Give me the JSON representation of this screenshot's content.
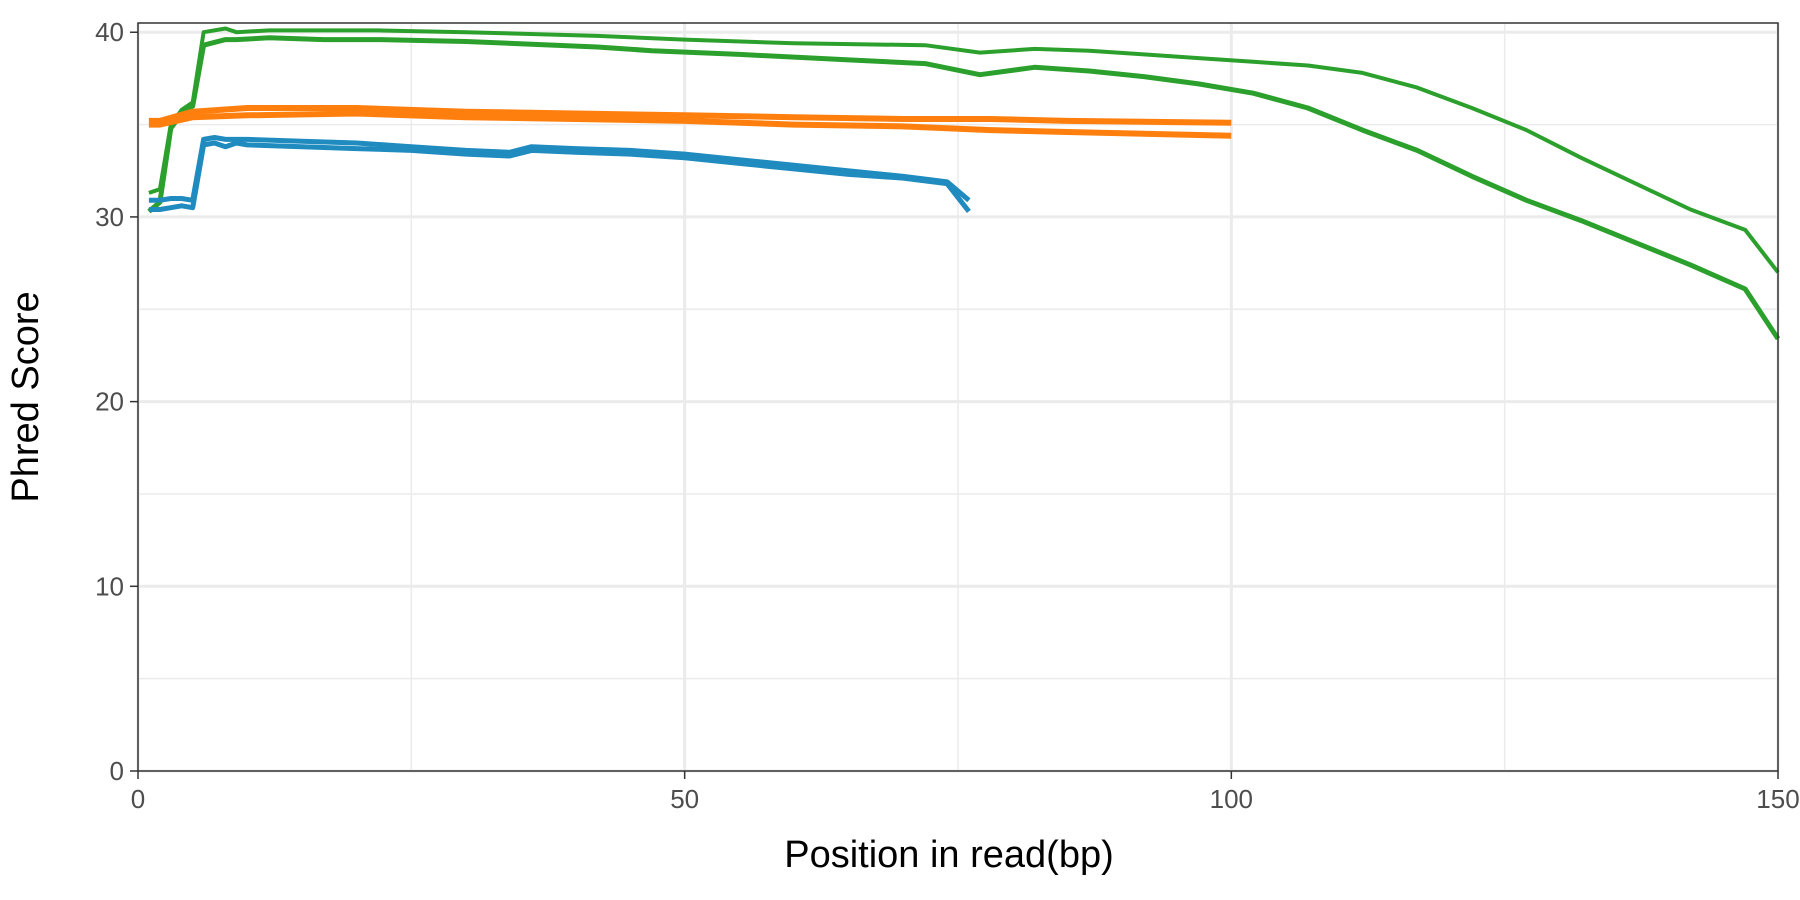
{
  "chart_data": {
    "type": "line",
    "xlabel": "Position in read(bp)",
    "ylabel": "Phred Score",
    "xlim": [
      0,
      150
    ],
    "ylim": [
      0,
      40.5
    ],
    "x_ticks": [
      0,
      50,
      100,
      150
    ],
    "y_ticks": [
      0,
      10,
      20,
      30,
      40
    ],
    "x_tick_labels": [
      "0",
      "50",
      "100",
      "150"
    ],
    "y_tick_labels": [
      "0",
      "10",
      "20",
      "30",
      "40"
    ],
    "grid": true,
    "legend": "none",
    "series": [
      {
        "color": "#2ca02c",
        "width": 4,
        "x": [
          1,
          2,
          3,
          4,
          5,
          6,
          8,
          9,
          12,
          17,
          22,
          30,
          42,
          50,
          60,
          72,
          77,
          82,
          87,
          92,
          97,
          102,
          107,
          112,
          117,
          122,
          127,
          132,
          137,
          142,
          147,
          150
        ],
        "y": [
          31.3,
          31.5,
          35.0,
          35.8,
          36.2,
          40.0,
          40.2,
          40.0,
          40.1,
          40.1,
          40.1,
          40.0,
          39.8,
          39.6,
          39.4,
          39.3,
          38.9,
          39.1,
          39.0,
          38.8,
          38.6,
          38.4,
          38.2,
          37.8,
          37.0,
          35.9,
          34.7,
          33.2,
          31.8,
          30.4,
          29.3,
          27.0
        ]
      },
      {
        "color": "#2ca02c",
        "width": 5,
        "x": [
          1,
          2,
          3,
          4,
          5,
          6,
          8,
          9,
          12,
          17,
          22,
          30,
          42,
          47,
          55,
          65,
          72,
          77,
          82,
          87,
          92,
          97,
          102,
          107,
          112,
          117,
          122,
          127,
          132,
          137,
          142,
          147,
          150
        ],
        "y": [
          30.3,
          30.8,
          34.8,
          35.6,
          36.0,
          39.3,
          39.6,
          39.6,
          39.7,
          39.6,
          39.6,
          39.5,
          39.2,
          39.0,
          38.8,
          38.5,
          38.3,
          37.7,
          38.1,
          37.9,
          37.6,
          37.2,
          36.7,
          35.9,
          34.7,
          33.6,
          32.2,
          30.9,
          29.8,
          28.6,
          27.4,
          26.1,
          23.4
        ]
      },
      {
        "color": "#ff7f0e",
        "width": 6,
        "x": [
          1,
          2,
          5,
          10,
          20,
          30,
          40,
          50,
          60,
          70,
          78,
          85,
          100
        ],
        "y": [
          35.2,
          35.2,
          35.7,
          35.9,
          35.9,
          35.7,
          35.6,
          35.5,
          35.4,
          35.3,
          35.3,
          35.2,
          35.1
        ]
      },
      {
        "color": "#ff7f0e",
        "width": 6,
        "x": [
          1,
          2,
          5,
          10,
          20,
          30,
          40,
          50,
          60,
          70,
          78,
          85,
          100
        ],
        "y": [
          35.0,
          35.0,
          35.4,
          35.5,
          35.6,
          35.4,
          35.3,
          35.2,
          35.0,
          34.9,
          34.7,
          34.6,
          34.4
        ]
      },
      {
        "color": "#1f8bbf",
        "width": 5,
        "x": [
          1,
          2,
          3,
          4,
          5,
          6,
          7,
          8,
          9,
          10,
          15,
          20,
          25,
          30,
          34,
          36,
          40,
          45,
          50,
          55,
          60,
          65,
          70,
          74,
          76
        ],
        "y": [
          30.9,
          30.9,
          31.0,
          31.0,
          30.9,
          34.2,
          34.3,
          34.2,
          34.2,
          34.2,
          34.1,
          34.0,
          33.8,
          33.6,
          33.5,
          33.8,
          33.7,
          33.6,
          33.4,
          33.1,
          32.8,
          32.5,
          32.2,
          31.9,
          30.9
        ]
      },
      {
        "color": "#1f8bbf",
        "width": 5,
        "x": [
          1,
          2,
          3,
          4,
          5,
          6,
          7,
          8,
          9,
          10,
          15,
          20,
          25,
          30,
          34,
          36,
          40,
          45,
          50,
          55,
          60,
          65,
          70,
          74,
          76
        ],
        "y": [
          30.4,
          30.4,
          30.5,
          30.6,
          30.5,
          33.9,
          34.0,
          33.8,
          34.0,
          33.9,
          33.8,
          33.7,
          33.6,
          33.4,
          33.3,
          33.6,
          33.5,
          33.4,
          33.2,
          32.9,
          32.6,
          32.3,
          32.1,
          31.8,
          30.3
        ]
      }
    ]
  }
}
